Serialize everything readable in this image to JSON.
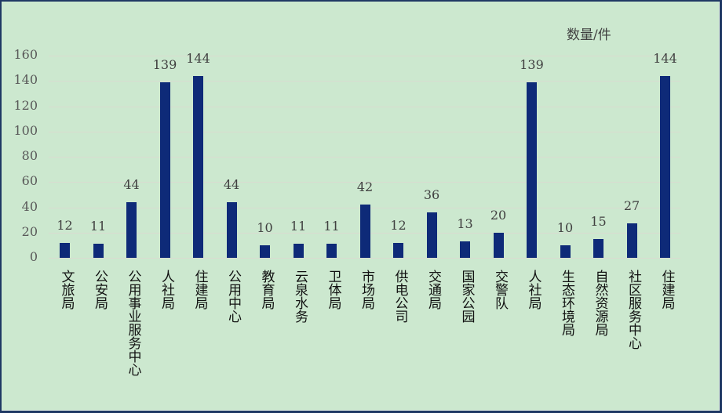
{
  "chart_data": {
    "type": "bar",
    "title": "",
    "xlabel": "",
    "ylabel": "数量/件",
    "ylim": [
      0,
      160
    ],
    "yticks": [
      0,
      20,
      40,
      60,
      80,
      100,
      120,
      140,
      160
    ],
    "grid": true,
    "legend": "none",
    "colors": {
      "bar": "#0e2a78",
      "background": "#cce8cf",
      "border": "#1f3864"
    },
    "categories": [
      "文旅局",
      "公安局",
      "公用事业服务中心",
      "人社局",
      "住建局",
      "公用中心",
      "教育局",
      "云泉水务",
      "卫体局",
      "市场局",
      "供电公司",
      "交通局",
      "国家公园",
      "交警队",
      "人社局",
      "生态环境局",
      "自然资源局",
      "社区服务中心",
      "住建局"
    ],
    "values": [
      12,
      11,
      44,
      139,
      144,
      44,
      10,
      11,
      11,
      42,
      12,
      36,
      13,
      20,
      139,
      10,
      15,
      27,
      144
    ]
  },
  "unit_label": "数量/件"
}
